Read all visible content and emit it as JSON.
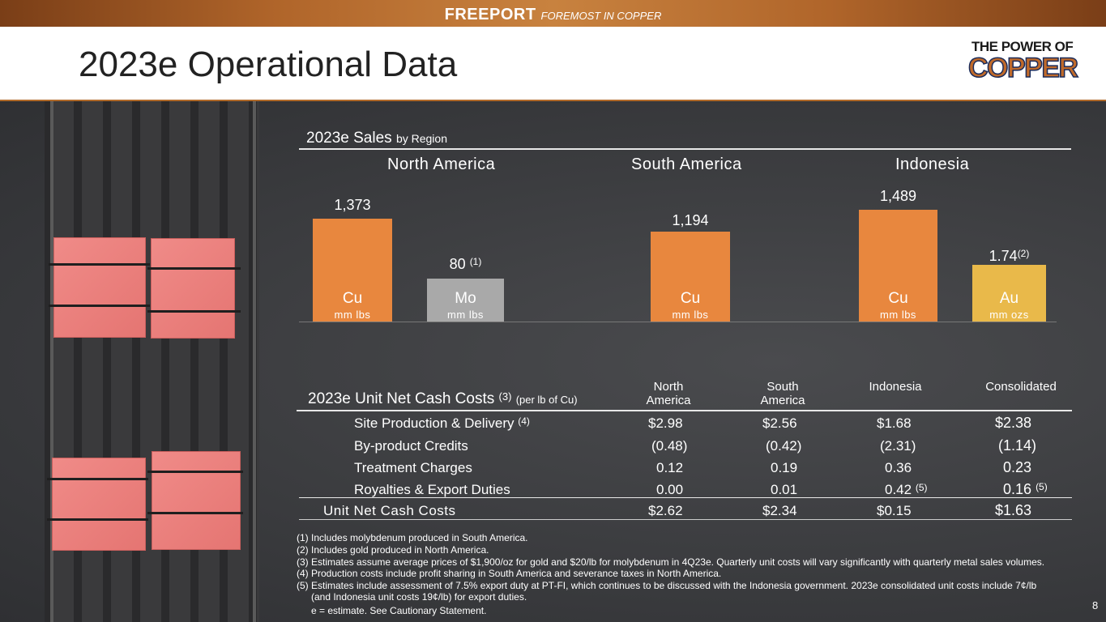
{
  "brand": {
    "name": "FREEPORT",
    "tagline": "FOREMOST IN COPPER"
  },
  "page_title": "2023e Operational Data",
  "logo": {
    "line1": "THE POWER OF",
    "line2": "COPPER"
  },
  "colors": {
    "copper_bar": "#e8873e",
    "mo_bar": "#a9a9a9",
    "au_bar": "#e9b94a",
    "header_accent": "#b06a2a"
  },
  "sales": {
    "title": "2023e Sales",
    "subtitle": "by Region",
    "regions": [
      "North America",
      "South America",
      "Indonesia"
    ],
    "bars": [
      {
        "metal": "Cu",
        "unit": "mm lbs",
        "value": "1,373",
        "note": ""
      },
      {
        "metal": "Mo",
        "unit": "mm lbs",
        "value": "80",
        "note": "(1)"
      },
      {
        "metal": "Cu",
        "unit": "mm lbs",
        "value": "1,194",
        "note": ""
      },
      {
        "metal": "Cu",
        "unit": "mm lbs",
        "value": "1,489",
        "note": ""
      },
      {
        "metal": "Au",
        "unit": "mm ozs",
        "value": "1.74",
        "note": "(2)"
      }
    ]
  },
  "costs": {
    "title": "2023e Unit Net Cash Costs",
    "title_note": "(3)",
    "title_sub": "(per lb of Cu)",
    "columns": [
      {
        "line1": "North",
        "line2": "America"
      },
      {
        "line1": "South",
        "line2": "America"
      },
      {
        "line1": "",
        "line2": "Indonesia"
      },
      {
        "line1": "",
        "line2": "Consolidated"
      }
    ],
    "rows": [
      {
        "label": "Site Production & Delivery",
        "note": "(4)",
        "values": [
          "$2.98",
          "$2.56",
          "$1.68",
          "$2.38"
        ],
        "notes": [
          "",
          "",
          "",
          ""
        ]
      },
      {
        "label": "By-product Credits",
        "note": "",
        "values": [
          "(0.48)",
          "(0.42)",
          "(2.31)",
          "(1.14)"
        ],
        "notes": [
          "",
          "",
          "",
          ""
        ]
      },
      {
        "label": "Treatment Charges",
        "note": "",
        "values": [
          "0.12",
          "0.19",
          "0.36",
          "0.23"
        ],
        "notes": [
          "",
          "",
          "",
          ""
        ]
      },
      {
        "label": "Royalties & Export Duties",
        "note": "",
        "values": [
          "0.00",
          "0.01",
          "0.42",
          "0.16"
        ],
        "notes": [
          "",
          "",
          "(5)",
          "(5)"
        ]
      }
    ],
    "total": {
      "label": "Unit Net Cash Costs",
      "values": [
        "$2.62",
        "$2.34",
        "$0.15",
        "$1.63"
      ]
    }
  },
  "footnotes": [
    "(1) Includes molybdenum produced in South America.",
    "(2) Includes gold produced in North America.",
    "(3) Estimates assume average prices of $1,900/oz for gold and $20/lb for molybdenum in 4Q23e. Quarterly unit costs will vary significantly with quarterly metal sales volumes.",
    "(4) Production costs include profit sharing in South America and severance taxes in North America.",
    "(5) Estimates include assessment of 7.5% export duty at PT-FI, which continues to be discussed with the Indonesia government. 2023e consolidated unit costs include 7¢/lb",
    "(and Indonesia unit costs 19¢/lb) for export duties.",
    "e = estimate. See Cautionary Statement."
  ],
  "page_number": "8"
}
